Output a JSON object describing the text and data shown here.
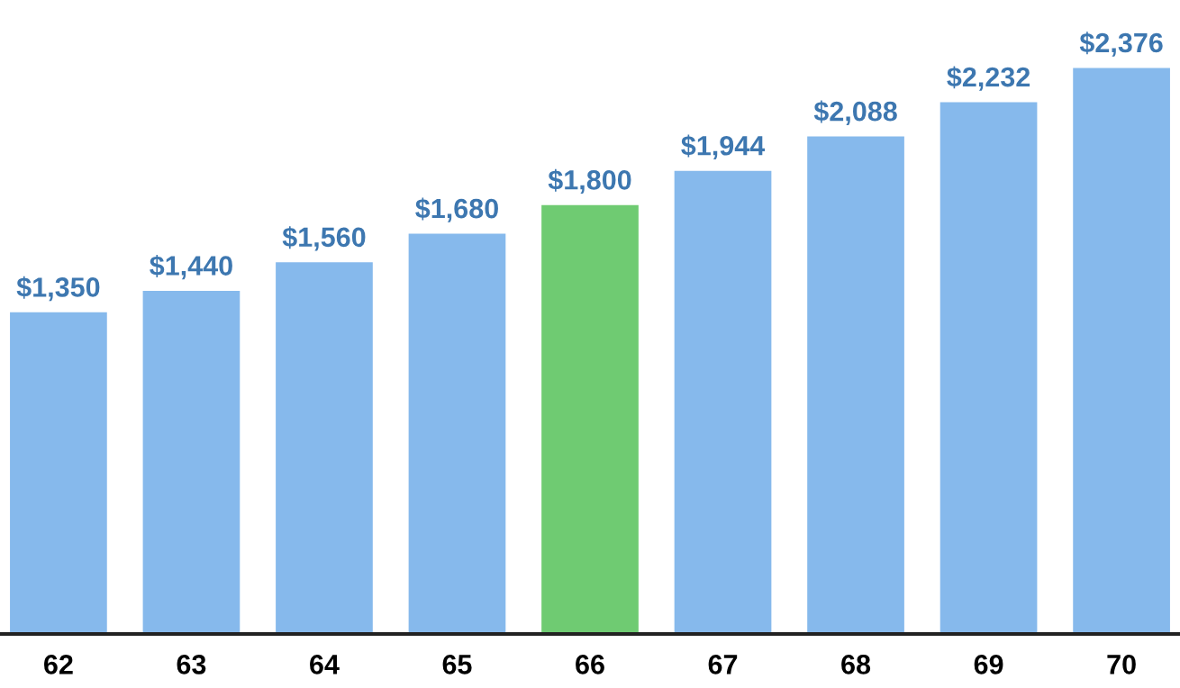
{
  "chart_data": {
    "type": "bar",
    "categories": [
      "62",
      "63",
      "64",
      "65",
      "66",
      "67",
      "68",
      "69",
      "70"
    ],
    "values": [
      1350,
      1440,
      1560,
      1680,
      1800,
      1944,
      2088,
      2232,
      2376
    ],
    "value_labels": [
      "$1,350",
      "$1,440",
      "$1,560",
      "$1,680",
      "$1,800",
      "$1,944",
      "$2,088",
      "$2,232",
      "$2,376"
    ],
    "colors": [
      "#86b9ec",
      "#86b9ec",
      "#86b9ec",
      "#86b9ec",
      "#6fcb72",
      "#86b9ec",
      "#86b9ec",
      "#86b9ec",
      "#86b9ec"
    ],
    "tick_labels": "x",
    "grid": false,
    "legend": false
  }
}
